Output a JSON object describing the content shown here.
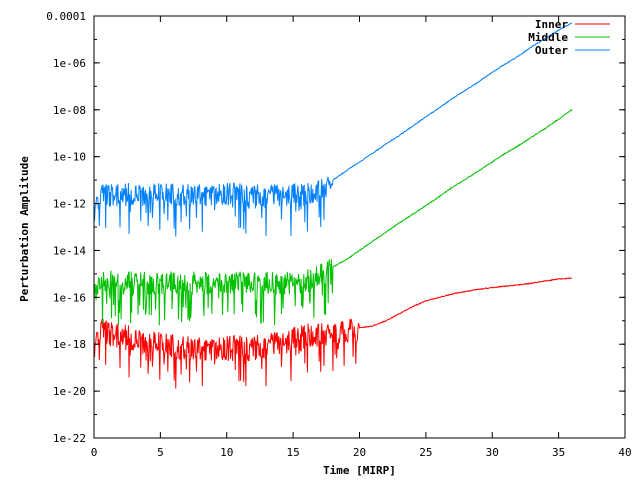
{
  "chart_data": {
    "type": "line",
    "xlabel": "Time [MIRP]",
    "ylabel": "Perturbation Amplitude",
    "xlim": [
      0,
      40
    ],
    "ylim": [
      1e-22,
      0.0001
    ],
    "yscale": "log",
    "grid": false,
    "legend_position": "top-right",
    "x_ticks": [
      0,
      5,
      10,
      15,
      20,
      25,
      30,
      35,
      40
    ],
    "x_tick_labels": [
      "0",
      "5",
      "10",
      "15",
      "20",
      "25",
      "30",
      "35",
      "40"
    ],
    "y_ticks": [
      1e-22,
      1e-20,
      1e-18,
      1e-16,
      1e-14,
      1e-12,
      1e-10,
      1e-08,
      1e-06,
      0.0001
    ],
    "y_tick_labels": [
      "1e-22",
      "1e-20",
      "1e-18",
      "1e-16",
      "1e-14",
      "1e-12",
      "1e-10",
      "1e-08",
      "1e-06",
      "0.0001"
    ],
    "series": [
      {
        "name": "Inner",
        "color": "#ff0000",
        "x": [
          0,
          0.5,
          1,
          2,
          3,
          4,
          5,
          6,
          7,
          8,
          9,
          10,
          11,
          12,
          13,
          14,
          15,
          16,
          17,
          18,
          19,
          20,
          21,
          22,
          23,
          24,
          25,
          26,
          27,
          28,
          29,
          30,
          31,
          32,
          33,
          34,
          35,
          36
        ],
        "y": [
          3e-18,
          5e-18,
          4e-18,
          3e-18,
          2e-18,
          1.5e-18,
          1.2e-18,
          1e-18,
          9e-19,
          8e-19,
          8e-19,
          8e-19,
          9e-19,
          1e-18,
          1.2e-18,
          1.5e-18,
          2e-18,
          3e-18,
          3.5e-18,
          4e-18,
          4.5e-18,
          5e-18,
          6e-18,
          1e-17,
          2e-17,
          4e-17,
          7e-17,
          1e-16,
          1.4e-16,
          1.8e-16,
          2.2e-16,
          2.6e-16,
          3e-16,
          3.4e-16,
          4e-16,
          5e-16,
          6e-16,
          6.5e-16
        ]
      },
      {
        "name": "Middle",
        "color": "#00c000",
        "x": [
          0,
          0.5,
          1,
          2,
          3,
          4,
          5,
          6,
          7,
          8,
          9,
          10,
          11,
          12,
          13,
          14,
          15,
          16,
          17,
          18,
          19,
          20,
          21,
          22,
          23,
          24,
          25,
          26,
          27,
          28,
          29,
          30,
          31,
          32,
          33,
          34,
          35,
          36
        ],
        "y": [
          2e-16,
          5e-16,
          6e-16,
          5e-16,
          5e-16,
          5e-16,
          5e-16,
          5e-16,
          5e-16,
          5e-16,
          5e-16,
          5e-16,
          5e-16,
          5e-16,
          5e-16,
          5e-16,
          5e-16,
          6e-16,
          1e-15,
          2e-15,
          4e-15,
          1e-14,
          2.5e-14,
          6e-14,
          1.5e-13,
          3.5e-13,
          8e-13,
          2e-12,
          5e-12,
          1.1e-11,
          2.5e-11,
          6e-11,
          1.4e-10,
          3e-10,
          7e-10,
          1.6e-09,
          4e-09,
          1e-08
        ]
      },
      {
        "name": "Outer",
        "color": "#0080ff",
        "x": [
          0,
          0.5,
          1,
          2,
          3,
          4,
          5,
          6,
          7,
          8,
          9,
          10,
          11,
          12,
          13,
          14,
          15,
          16,
          17,
          18,
          19,
          20,
          21,
          22,
          23,
          24,
          25,
          26,
          27,
          28,
          29,
          30,
          31,
          32,
          33,
          34,
          35,
          36
        ],
        "y": [
          2e-12,
          2.5e-12,
          3e-12,
          3e-12,
          3e-12,
          3e-12,
          3e-12,
          3e-12,
          3e-12,
          3e-12,
          3e-12,
          3e-12,
          3e-12,
          3e-12,
          3e-12,
          3e-12,
          3e-12,
          3e-12,
          5e-12,
          1e-11,
          2.5e-11,
          6e-11,
          1.4e-10,
          3.5e-10,
          8e-10,
          2e-09,
          5e-09,
          1.2e-08,
          3e-08,
          7e-08,
          1.6e-07,
          4e-07,
          9e-07,
          2e-06,
          5e-06,
          1.1e-05,
          2.5e-05,
          5e-05
        ]
      }
    ]
  }
}
